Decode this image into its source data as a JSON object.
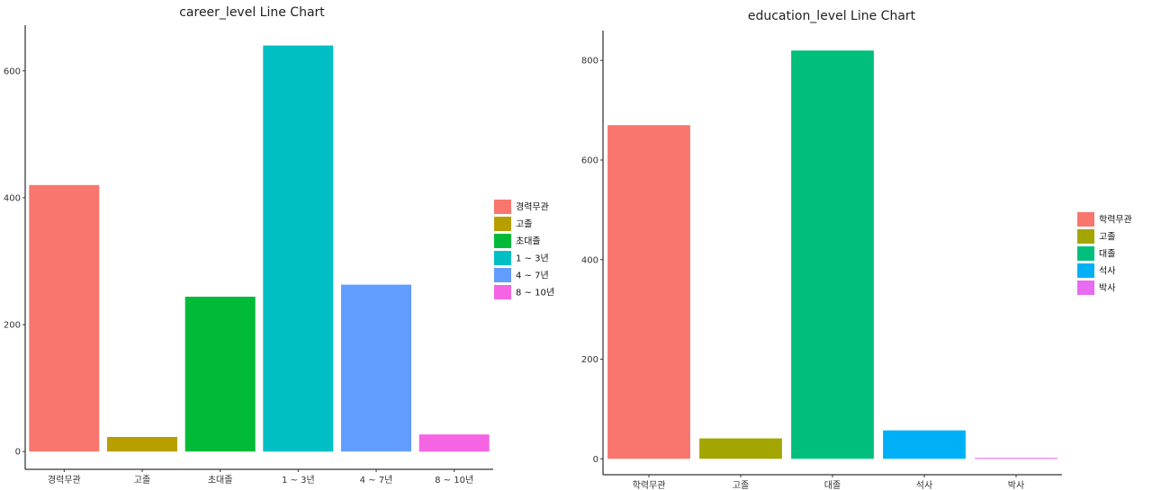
{
  "chart_data": [
    {
      "type": "bar",
      "title": "career_level Line Chart",
      "xlabel": "",
      "ylabel": "",
      "categories": [
        "경력무관",
        "고졸",
        "초대졸",
        "1 ~ 3년",
        "4 ~ 7년",
        "8 ~ 10년"
      ],
      "values": [
        420,
        23,
        244,
        640,
        263,
        27
      ],
      "colors": [
        "#F8766D",
        "#B79F00",
        "#00BA38",
        "#00BFC4",
        "#619CFF",
        "#F564E3"
      ],
      "ylim": [
        -28,
        672
      ],
      "yticks": [
        0,
        200,
        400,
        600
      ],
      "legend": {
        "position": "right",
        "items": [
          "경력무관",
          "고졸",
          "초대졸",
          "1 ~ 3년",
          "4 ~ 7년",
          "8 ~ 10년"
        ]
      },
      "grid": false
    },
    {
      "type": "bar",
      "title": "education_level Line Chart",
      "xlabel": "",
      "ylabel": "",
      "categories": [
        "학력무관",
        "고졸",
        "대졸",
        "석사",
        "박사"
      ],
      "values": [
        670,
        41,
        820,
        57,
        2
      ],
      "colors": [
        "#F8766D",
        "#A3A500",
        "#00BF7D",
        "#00B0F6",
        "#E76BF3"
      ],
      "ylim": [
        -32,
        860
      ],
      "yticks": [
        0,
        200,
        400,
        600,
        800
      ],
      "legend": {
        "position": "right",
        "items": [
          "학력무관",
          "고졸",
          "대졸",
          "석사",
          "박사"
        ]
      },
      "grid": false
    }
  ]
}
